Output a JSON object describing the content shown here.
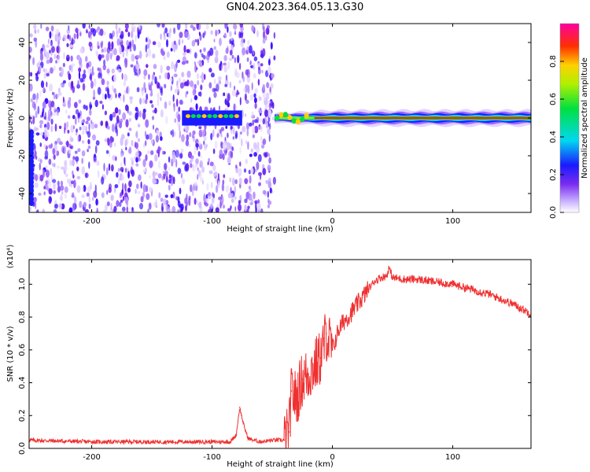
{
  "page": {
    "title": "GN04.2023.364.05.13.G30"
  },
  "colors": {
    "spectrogram_noise": "#7a2cf0",
    "spectrogram_light": "#d9c3ff",
    "snr_line": "#f03030",
    "axis": "#000000"
  },
  "chart_data": [
    {
      "type": "heatmap",
      "title": "GN04.2023.364.05.13.G30",
      "xlabel": "Height of straight line (km)",
      "ylabel": "Frequency (Hz)",
      "xlim": [
        -252,
        165
      ],
      "ylim": [
        -50,
        50
      ],
      "x_ticks": [
        -200,
        -100,
        0,
        100
      ],
      "y_ticks": [
        -40,
        -20,
        0,
        20,
        40
      ],
      "colorbar": {
        "label": "Normalized spectral amplitude",
        "range": [
          0.0,
          1.0
        ],
        "ticks": [
          0.0,
          0.2,
          0.4,
          0.6,
          0.8
        ],
        "colormap": "rainbow (white-violet-blue-cyan-green-yellow-red-magenta)"
      },
      "description_values": {
        "noise_region_x": [
          -252,
          -48
        ],
        "signal_band_freq_hz": 0,
        "signal_region_x": [
          -48,
          165
        ],
        "early_signal_segment_x": [
          -125,
          -75
        ]
      },
      "grid": false
    },
    {
      "type": "line",
      "xlabel": "Height of straight line (km)",
      "ylabel": "SNR (10 * v/v)",
      "y_multiplier": "(x10⁴)",
      "xlim": [
        -252,
        165
      ],
      "ylim": [
        0,
        1.15
      ],
      "x_ticks": [
        -200,
        -100,
        0,
        100
      ],
      "y_ticks": [
        0.0,
        0.2,
        0.4,
        0.6,
        0.8,
        1.0
      ],
      "grid": false,
      "series": [
        {
          "x": [
            -252,
            -200,
            -150,
            -100,
            -85,
            -80,
            -77,
            -74,
            -70,
            -60,
            -50,
            -40,
            -36,
            -34,
            -30,
            -25,
            -20,
            -15,
            -10,
            -5,
            0,
            5,
            10,
            15,
            20,
            25,
            30,
            35,
            40,
            45,
            47,
            50,
            60,
            70,
            80,
            90,
            100,
            110,
            120,
            130,
            140,
            150,
            160,
            165
          ],
          "y": [
            0.05,
            0.04,
            0.04,
            0.04,
            0.04,
            0.08,
            0.25,
            0.15,
            0.06,
            0.04,
            0.05,
            0.05,
            0.1,
            0.35,
            0.3,
            0.42,
            0.45,
            0.5,
            0.55,
            0.7,
            0.6,
            0.72,
            0.78,
            0.82,
            0.87,
            0.92,
            0.97,
            1.02,
            1.04,
            1.05,
            1.1,
            1.04,
            1.03,
            1.03,
            1.02,
            1.01,
            1.0,
            0.98,
            0.96,
            0.94,
            0.91,
            0.88,
            0.84,
            0.82
          ]
        }
      ]
    }
  ]
}
